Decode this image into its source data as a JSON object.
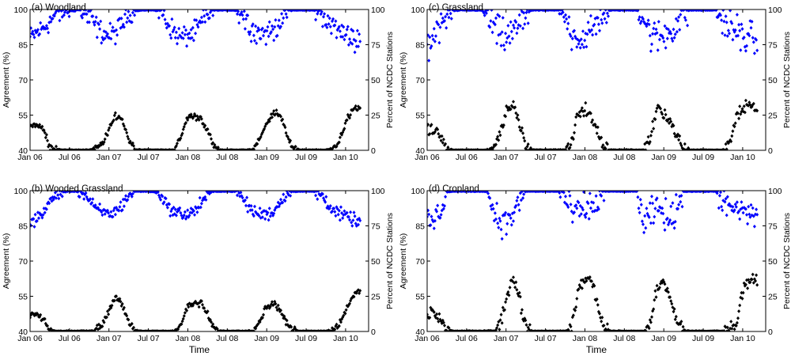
{
  "figure": {
    "xlabel": "Time",
    "colors": {
      "agreement": "#0000ff",
      "stations": "#000000",
      "axis": "#000000"
    }
  },
  "chart_data": [
    {
      "type": "scatter",
      "title": "(a) Woodland",
      "ylabel_left": "Agreement (%)",
      "ylabel_right": "Percent of NCDC Stations",
      "xlabel": "",
      "x_ticks": [
        "Jan 06",
        "Jul 06",
        "Jan 07",
        "Jul 07",
        "Jan 08",
        "Jul 08",
        "Jan 09",
        "Jul 09",
        "Jan 10"
      ],
      "ylim_left": [
        40,
        100
      ],
      "yticks_left": [
        40,
        55,
        70,
        85,
        100
      ],
      "ylim_right": [
        0,
        100
      ],
      "yticks_right": [
        0,
        25,
        50,
        75,
        100
      ],
      "series": [
        {
          "name": "Agreement",
          "axis": "left",
          "color": "#0000ff",
          "x_months": [
            0,
            1,
            2,
            3,
            4,
            5,
            6,
            7,
            8,
            9,
            10,
            11,
            12,
            13,
            14,
            15,
            16,
            17,
            18,
            19,
            20,
            21,
            22,
            23,
            24,
            25,
            26,
            27,
            28,
            29,
            30,
            31,
            32,
            33,
            34,
            35,
            36,
            37,
            38,
            39,
            40,
            41,
            42,
            43,
            44,
            45,
            46,
            47,
            48,
            49,
            50
          ],
          "values": [
            88,
            90,
            92,
            95,
            98,
            99,
            99.5,
            99.5,
            99,
            97,
            93,
            90,
            89,
            90,
            94,
            98,
            99.5,
            99.8,
            99.8,
            99.8,
            99,
            94,
            90,
            88,
            89,
            90,
            94,
            98,
            99.8,
            99.8,
            99.8,
            99.8,
            99,
            95,
            91,
            90,
            90,
            91,
            95,
            99,
            99.8,
            99.8,
            99.8,
            99.8,
            99,
            96,
            93,
            91,
            89,
            88,
            87
          ],
          "spread": 5
        },
        {
          "name": "Percent of NCDC Stations",
          "axis": "right",
          "color": "#000000",
          "x_months": [
            0,
            1,
            2,
            3,
            4,
            5,
            6,
            7,
            8,
            9,
            10,
            11,
            12,
            13,
            14,
            15,
            16,
            17,
            18,
            19,
            20,
            21,
            22,
            23,
            24,
            25,
            26,
            27,
            28,
            29,
            30,
            31,
            32,
            33,
            34,
            35,
            36,
            37,
            38,
            39,
            40,
            41,
            42,
            43,
            44,
            45,
            46,
            47,
            48,
            49,
            50
          ],
          "values": [
            18,
            18,
            15,
            3,
            0.5,
            0,
            0,
            0,
            0,
            0,
            1,
            5,
            14,
            25,
            22,
            8,
            1,
            0,
            0,
            0,
            0,
            0,
            0,
            10,
            24,
            24,
            23,
            14,
            2,
            0,
            0,
            0,
            0,
            0,
            1,
            8,
            20,
            27,
            25,
            12,
            2,
            0,
            0,
            0,
            0,
            0,
            1,
            6,
            20,
            28,
            30
          ],
          "spread": 2.5
        }
      ]
    },
    {
      "type": "scatter",
      "title": "(c) Grassland",
      "ylabel_left": "Agreement (%)",
      "ylabel_right": "Percent of NCDC Stations",
      "xlabel": "",
      "x_ticks": [
        "Jan 06",
        "Jul 06",
        "Jan 07",
        "Jul 07",
        "Jan 08",
        "Jul 08",
        "Jan 09",
        "Jul 09",
        "Jan 10"
      ],
      "ylim_left": [
        40,
        100
      ],
      "yticks_left": [
        40,
        55,
        70,
        85,
        100
      ],
      "ylim_right": [
        0,
        100
      ],
      "yticks_right": [
        0,
        25,
        50,
        75,
        100
      ],
      "series": [
        {
          "name": "Agreement",
          "axis": "left",
          "color": "#0000ff",
          "x_months": [
            0,
            1,
            2,
            3,
            4,
            5,
            6,
            7,
            8,
            9,
            10,
            11,
            12,
            13,
            14,
            15,
            16,
            17,
            18,
            19,
            20,
            21,
            22,
            23,
            24,
            25,
            26,
            27,
            28,
            29,
            30,
            31,
            32,
            33,
            34,
            35,
            36,
            37,
            38,
            39,
            40,
            41,
            42,
            43,
            44,
            45,
            46,
            47,
            48,
            49,
            50
          ],
          "values": [
            84,
            88,
            92,
            97,
            99.5,
            99.8,
            99.8,
            99.8,
            99.8,
            98,
            93,
            89,
            88,
            90,
            93,
            99,
            99.8,
            99.8,
            99.8,
            99.8,
            99.8,
            96,
            91,
            88,
            88,
            90,
            95,
            99,
            99.8,
            99.8,
            99.8,
            99.8,
            99.8,
            96,
            89,
            88,
            89,
            91,
            94,
            99,
            99.8,
            99.8,
            99.8,
            99.8,
            99.8,
            96,
            92,
            90,
            89,
            88,
            87
          ],
          "spread": 8
        },
        {
          "name": "Percent of NCDC Stations",
          "axis": "right",
          "color": "#000000",
          "x_months": [
            0,
            1,
            2,
            3,
            4,
            5,
            6,
            7,
            8,
            9,
            10,
            11,
            12,
            13,
            14,
            15,
            16,
            17,
            18,
            19,
            20,
            21,
            22,
            23,
            24,
            25,
            26,
            27,
            28,
            29,
            30,
            31,
            32,
            33,
            34,
            35,
            36,
            37,
            38,
            39,
            40,
            41,
            42,
            43,
            44,
            45,
            46,
            47,
            48,
            49,
            50
          ],
          "values": [
            14,
            15,
            10,
            1,
            0,
            0,
            0,
            0,
            0,
            0,
            2,
            10,
            28,
            33,
            20,
            5,
            0,
            0,
            0,
            0,
            0,
            0,
            5,
            27,
            30,
            22,
            12,
            3,
            0,
            0,
            0,
            0,
            0,
            0,
            10,
            32,
            27,
            20,
            10,
            2,
            0,
            0,
            0,
            0,
            0,
            0,
            5,
            22,
            30,
            32,
            30
          ],
          "spread": 5
        }
      ]
    },
    {
      "type": "scatter",
      "title": "(b) Wooded Grassland",
      "ylabel_left": "Agreement (%)",
      "ylabel_right": "Percent of NCDC Stations",
      "xlabel": "Time",
      "x_ticks": [
        "Jan 06",
        "Jul 06",
        "Jan 07",
        "Jul 07",
        "Jan 08",
        "Jul 08",
        "Jan 09",
        "Jul 09",
        "Jan 10"
      ],
      "ylim_left": [
        40,
        100
      ],
      "yticks_left": [
        40,
        55,
        70,
        85,
        100
      ],
      "ylim_right": [
        0,
        100
      ],
      "yticks_right": [
        0,
        25,
        50,
        75,
        100
      ],
      "series": [
        {
          "name": "Agreement",
          "axis": "left",
          "color": "#0000ff",
          "x_months": [
            0,
            1,
            2,
            3,
            4,
            5,
            6,
            7,
            8,
            9,
            10,
            11,
            12,
            13,
            14,
            15,
            16,
            17,
            18,
            19,
            20,
            21,
            22,
            23,
            24,
            25,
            26,
            27,
            28,
            29,
            30,
            31,
            32,
            33,
            34,
            35,
            36,
            37,
            38,
            39,
            40,
            41,
            42,
            43,
            44,
            45,
            46,
            47,
            48,
            49,
            50
          ],
          "values": [
            86,
            88,
            91,
            95,
            98,
            99.5,
            99.8,
            99.8,
            99,
            96,
            92,
            91,
            90,
            91,
            94,
            98,
            99.8,
            99.8,
            99.8,
            99.5,
            98,
            93,
            91,
            90,
            90,
            91,
            95,
            98,
            99.8,
            99.8,
            99.8,
            99.8,
            98,
            94,
            91,
            90,
            90,
            91,
            95,
            99,
            99.8,
            99.8,
            99.8,
            99.8,
            99,
            96,
            92,
            90,
            89,
            88,
            86
          ],
          "spread": 3
        },
        {
          "name": "Percent of NCDC Stations",
          "axis": "right",
          "color": "#000000",
          "x_months": [
            0,
            1,
            2,
            3,
            4,
            5,
            6,
            7,
            8,
            9,
            10,
            11,
            12,
            13,
            14,
            15,
            16,
            17,
            18,
            19,
            20,
            21,
            22,
            23,
            24,
            25,
            26,
            27,
            28,
            29,
            30,
            31,
            32,
            33,
            34,
            35,
            36,
            37,
            38,
            39,
            40,
            41,
            42,
            43,
            44,
            45,
            46,
            47,
            48,
            49,
            50
          ],
          "values": [
            12,
            12,
            8,
            1,
            0,
            0,
            0,
            0,
            0,
            0,
            1,
            5,
            15,
            25,
            20,
            6,
            0.5,
            0,
            0,
            0,
            0,
            0,
            0,
            5,
            18,
            20,
            20,
            12,
            2,
            0,
            0,
            0,
            0,
            0,
            1,
            8,
            18,
            20,
            16,
            6,
            1,
            0,
            0,
            0,
            0,
            0,
            1,
            5,
            15,
            25,
            28
          ],
          "spread": 2.5
        }
      ]
    },
    {
      "type": "scatter",
      "title": "(d) Cropland",
      "ylabel_left": "Agreement (%)",
      "ylabel_right": "Percent of NCDC Stations",
      "xlabel": "Time",
      "x_ticks": [
        "Jan 06",
        "Jul 06",
        "Jan 07",
        "Jul 07",
        "Jan 08",
        "Jul 08",
        "Jan 09",
        "Jul 09",
        "Jan 10"
      ],
      "ylim_left": [
        40,
        100
      ],
      "yticks_left": [
        40,
        55,
        70,
        85,
        100
      ],
      "ylim_right": [
        0,
        100
      ],
      "yticks_right": [
        0,
        25,
        50,
        75,
        100
      ],
      "series": [
        {
          "name": "Agreement",
          "axis": "left",
          "color": "#0000ff",
          "x_months": [
            0,
            1,
            2,
            3,
            4,
            5,
            6,
            7,
            8,
            9,
            10,
            11,
            12,
            13,
            14,
            15,
            16,
            17,
            18,
            19,
            20,
            21,
            22,
            23,
            24,
            25,
            26,
            27,
            28,
            29,
            30,
            31,
            32,
            33,
            34,
            35,
            36,
            37,
            38,
            39,
            40,
            41,
            42,
            43,
            44,
            45,
            46,
            47,
            48,
            49,
            50
          ],
          "values": [
            88,
            86,
            92,
            99.5,
            99.8,
            99.8,
            99.8,
            99.8,
            99.8,
            99.8,
            92,
            88,
            86,
            90,
            95,
            99.8,
            99.8,
            99.8,
            99.8,
            99.8,
            99.8,
            97,
            90,
            91,
            92,
            93,
            95,
            99.8,
            99.8,
            99.8,
            99.8,
            99.8,
            99.8,
            84,
            90,
            92,
            91,
            86,
            94,
            99.8,
            99.8,
            99.8,
            99.8,
            99.8,
            99.8,
            96,
            91,
            92,
            91,
            90,
            89
          ],
          "spread": 7
        },
        {
          "name": "Percent of NCDC Stations",
          "axis": "right",
          "color": "#000000",
          "x_months": [
            0,
            1,
            2,
            3,
            4,
            5,
            6,
            7,
            8,
            9,
            10,
            11,
            12,
            13,
            14,
            15,
            16,
            17,
            18,
            19,
            20,
            21,
            22,
            23,
            24,
            25,
            26,
            27,
            28,
            29,
            30,
            31,
            32,
            33,
            34,
            35,
            36,
            37,
            38,
            39,
            40,
            41,
            42,
            43,
            44,
            45,
            46,
            47,
            48,
            49,
            50
          ],
          "values": [
            12,
            14,
            8,
            1,
            0,
            0,
            0,
            0,
            0,
            0,
            1,
            5,
            20,
            40,
            25,
            4,
            0,
            0,
            0,
            0,
            0,
            0,
            2,
            30,
            38,
            36,
            18,
            2,
            0,
            0,
            0,
            0,
            0,
            0,
            8,
            30,
            35,
            22,
            8,
            1,
            0,
            0,
            0,
            0,
            0,
            0,
            2,
            5,
            30,
            38,
            35
          ],
          "spread": 5
        }
      ]
    }
  ]
}
